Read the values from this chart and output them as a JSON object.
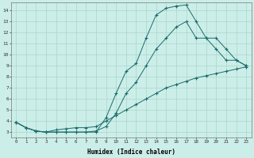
{
  "xlabel": "Humidex (Indice chaleur)",
  "bg_color": "#cceee8",
  "grid_color": "#aad4ce",
  "line_color": "#1a6b6b",
  "xlim": [
    -0.5,
    23.5
  ],
  "ylim": [
    2.5,
    14.7
  ],
  "xticks": [
    0,
    1,
    2,
    3,
    4,
    5,
    6,
    7,
    8,
    9,
    10,
    11,
    12,
    13,
    14,
    15,
    16,
    17,
    18,
    19,
    20,
    21,
    22,
    23
  ],
  "yticks": [
    3,
    4,
    5,
    6,
    7,
    8,
    9,
    10,
    11,
    12,
    13,
    14
  ],
  "curve1_x": [
    0,
    1,
    2,
    3,
    4,
    5,
    6,
    7,
    8,
    9,
    10,
    11,
    12,
    13,
    14,
    15,
    16,
    17,
    18,
    19,
    20,
    21,
    22,
    23
  ],
  "curve1_y": [
    3.9,
    3.4,
    3.1,
    3.0,
    3.0,
    3.0,
    3.0,
    3.0,
    3.0,
    4.3,
    6.5,
    8.5,
    9.2,
    11.5,
    13.6,
    14.2,
    14.4,
    14.5,
    13.0,
    11.5,
    10.5,
    9.5,
    9.5,
    9.0
  ],
  "curve2_x": [
    0,
    1,
    2,
    3,
    4,
    5,
    6,
    7,
    8,
    9,
    10,
    11,
    12,
    13,
    14,
    15,
    16,
    17,
    18,
    19,
    20,
    21,
    22,
    23
  ],
  "curve2_y": [
    3.9,
    3.4,
    3.1,
    3.0,
    3.0,
    3.0,
    3.0,
    3.0,
    3.1,
    3.5,
    4.7,
    6.5,
    7.5,
    9.0,
    10.5,
    11.5,
    12.5,
    13.0,
    11.5,
    11.5,
    11.5,
    10.5,
    9.5,
    9.0
  ],
  "curve3_x": [
    0,
    1,
    2,
    3,
    4,
    5,
    6,
    7,
    8,
    9,
    10,
    11,
    12,
    13,
    14,
    15,
    16,
    17,
    18,
    19,
    20,
    21,
    22,
    23
  ],
  "curve3_y": [
    3.9,
    3.4,
    3.1,
    3.0,
    3.2,
    3.3,
    3.4,
    3.4,
    3.5,
    4.0,
    4.5,
    5.0,
    5.5,
    6.0,
    6.5,
    7.0,
    7.3,
    7.6,
    7.9,
    8.1,
    8.3,
    8.5,
    8.7,
    8.9
  ]
}
